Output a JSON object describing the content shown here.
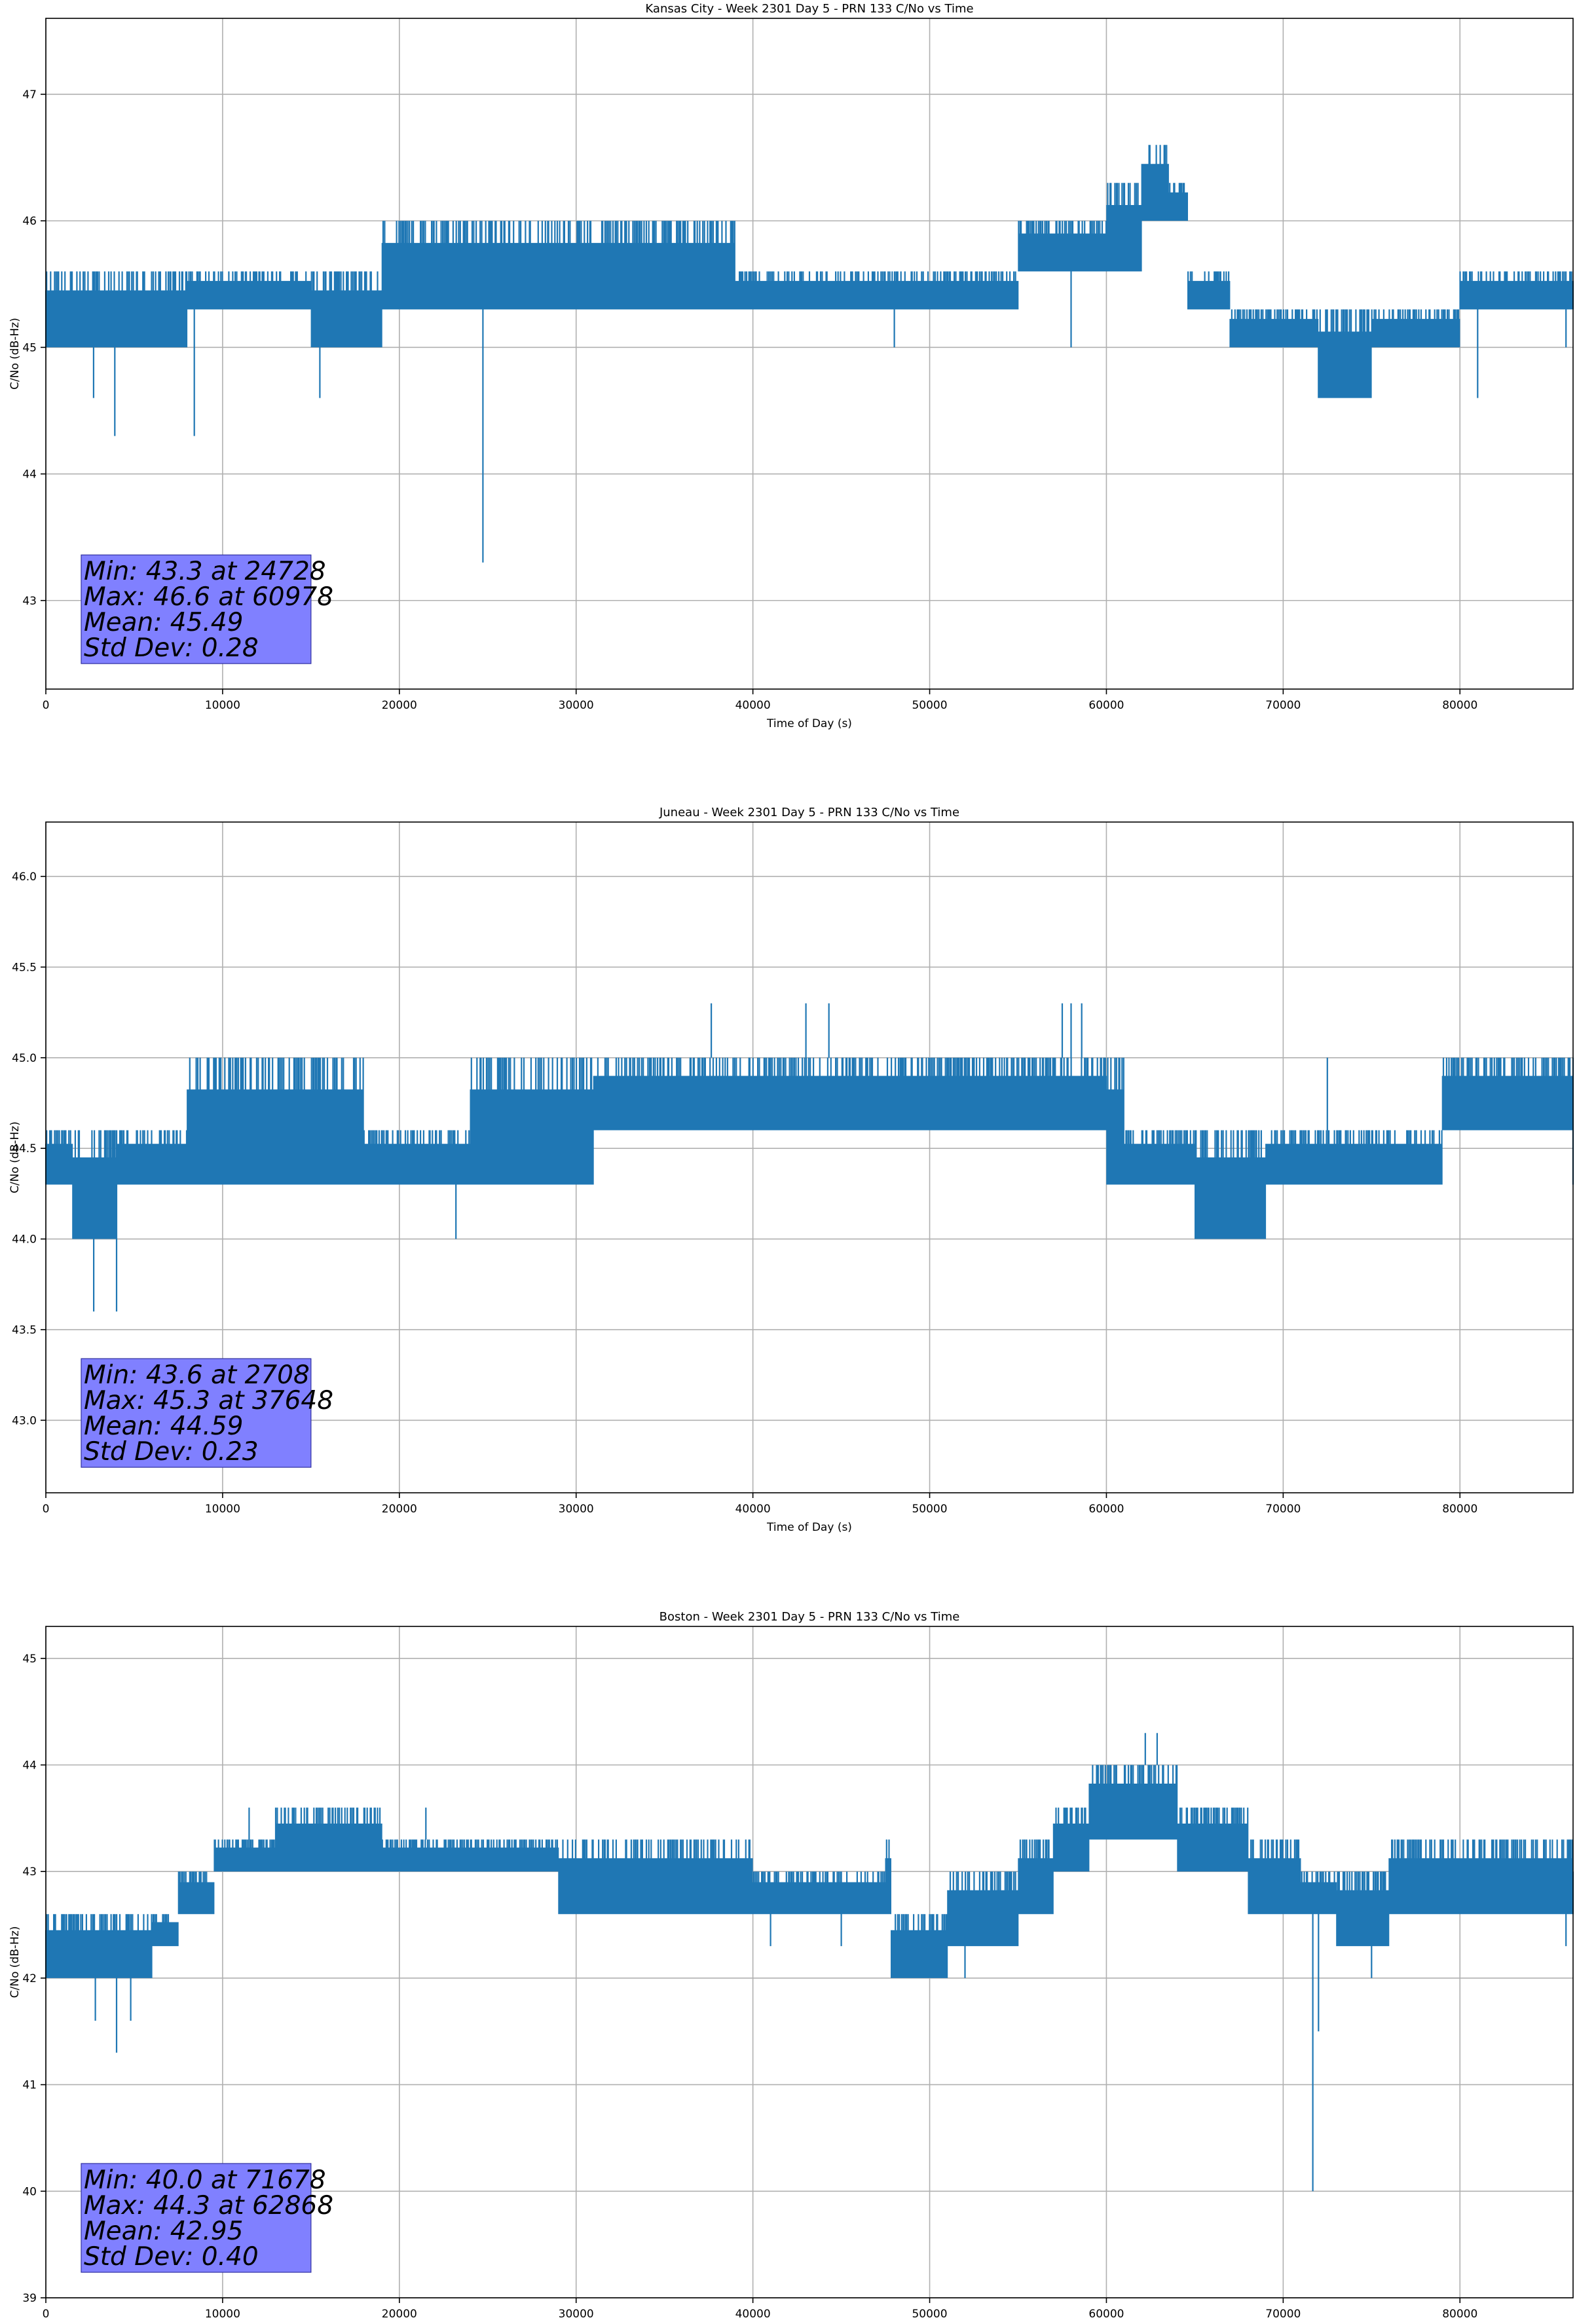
{
  "chart_data": [
    {
      "type": "line",
      "title": "Kansas City - Week 2301 Day 5 - PRN 133 C/No vs Time",
      "xlabel": "Time of Day (s)",
      "ylabel": "C/No (dB-Hz)",
      "xlim": [
        0,
        86400
      ],
      "ylim": [
        42.3,
        47.6
      ],
      "xticks": [
        0,
        10000,
        20000,
        30000,
        40000,
        50000,
        60000,
        70000,
        80000
      ],
      "yticks": [
        43,
        44,
        45,
        46,
        47
      ],
      "grid": true,
      "color": "#1f77b4",
      "annotation": [
        "Min: 43.3 at 24728",
        "Max: 46.6 at 60978",
        "Mean: 45.49",
        "Std Dev: 0.28"
      ],
      "band": [
        [
          0,
          45.0,
          45.6
        ],
        [
          8000,
          45.3,
          45.6
        ],
        [
          15000,
          45.0,
          45.6
        ],
        [
          19000,
          45.3,
          46.0
        ],
        [
          28000,
          45.3,
          46.0
        ],
        [
          39000,
          45.3,
          45.6
        ],
        [
          49000,
          45.3,
          45.6
        ],
        [
          55000,
          45.6,
          46.0
        ],
        [
          60000,
          45.6,
          46.3
        ],
        [
          62000,
          46.0,
          46.6
        ],
        [
          63500,
          46.0,
          46.3
        ],
        [
          64600,
          45.3,
          45.6
        ],
        [
          67000,
          45.0,
          45.3
        ],
        [
          69000,
          45.0,
          45.3
        ],
        [
          72000,
          44.6,
          45.3
        ],
        [
          75000,
          45.0,
          45.3
        ],
        [
          80000,
          45.3,
          45.6
        ],
        [
          86400,
          45.3,
          45.6
        ]
      ],
      "outliers": [
        [
          2700,
          44.6
        ],
        [
          3900,
          44.3
        ],
        [
          8400,
          44.3
        ],
        [
          15500,
          44.6
        ],
        [
          24728,
          43.3
        ],
        [
          48000,
          45.0
        ],
        [
          58000,
          45.0
        ],
        [
          73000,
          44.6
        ],
        [
          81000,
          44.6
        ],
        [
          86000,
          45.0
        ]
      ]
    },
    {
      "type": "line",
      "title": "Juneau - Week 2301 Day 5 - PRN 133 C/No vs Time",
      "xlabel": "Time of Day (s)",
      "ylabel": "C/No (dB-Hz)",
      "xlim": [
        0,
        86400
      ],
      "ylim": [
        42.6,
        46.3
      ],
      "xticks": [
        0,
        10000,
        20000,
        30000,
        40000,
        50000,
        60000,
        70000,
        80000
      ],
      "yticks": [
        43.0,
        43.5,
        44.0,
        44.5,
        45.0,
        45.5,
        46.0
      ],
      "grid": true,
      "color": "#1f77b4",
      "annotation": [
        "Min: 43.6 at 2708",
        "Max: 45.3 at 37648",
        "Mean: 44.59",
        "Std Dev: 0.23"
      ],
      "band": [
        [
          0,
          44.3,
          44.6
        ],
        [
          1500,
          44.0,
          44.6
        ],
        [
          4000,
          44.3,
          44.6
        ],
        [
          8000,
          44.3,
          45.0
        ],
        [
          18000,
          44.3,
          44.6
        ],
        [
          24000,
          44.3,
          45.0
        ],
        [
          31000,
          44.6,
          45.0
        ],
        [
          50000,
          44.6,
          45.0
        ],
        [
          60000,
          44.3,
          45.0
        ],
        [
          61000,
          44.3,
          44.6
        ],
        [
          65000,
          44.0,
          44.6
        ],
        [
          69000,
          44.3,
          44.6
        ],
        [
          79000,
          44.6,
          45.0
        ],
        [
          86400,
          44.3,
          45.0
        ]
      ],
      "outliers": [
        [
          2708,
          43.6
        ],
        [
          4000,
          43.6
        ],
        [
          23200,
          44.0
        ],
        [
          37648,
          45.3
        ],
        [
          43000,
          45.3
        ],
        [
          44300,
          45.3
        ],
        [
          57500,
          45.3
        ],
        [
          58000,
          45.3
        ],
        [
          58600,
          45.3
        ],
        [
          72500,
          45.0
        ]
      ]
    },
    {
      "type": "line",
      "title": "Boston - Week 2301 Day 5 - PRN 133 C/No vs Time",
      "xlabel": "Time of Day (s)",
      "ylabel": "C/No (dB-Hz)",
      "xlim": [
        0,
        86400
      ],
      "ylim": [
        39.0,
        45.3
      ],
      "xticks": [
        0,
        10000,
        20000,
        30000,
        40000,
        50000,
        60000,
        70000,
        80000
      ],
      "yticks": [
        39,
        40,
        41,
        42,
        43,
        44,
        45
      ],
      "grid": true,
      "color": "#1f77b4",
      "annotation": [
        "Min: 40.0 at 71678",
        "Max: 44.3 at 62868",
        "Mean: 42.95",
        "Std Dev: 0.40"
      ],
      "band": [
        [
          0,
          42.0,
          42.6
        ],
        [
          6000,
          42.3,
          42.6
        ],
        [
          7500,
          42.6,
          43.0
        ],
        [
          9500,
          43.0,
          43.3
        ],
        [
          13000,
          43.0,
          43.6
        ],
        [
          19000,
          43.0,
          43.3
        ],
        [
          29000,
          42.6,
          43.3
        ],
        [
          40000,
          42.6,
          43.0
        ],
        [
          47500,
          42.6,
          43.3
        ],
        [
          47800,
          42.0,
          42.6
        ],
        [
          51000,
          42.3,
          43.0
        ],
        [
          55000,
          42.6,
          43.3
        ],
        [
          57000,
          43.0,
          43.6
        ],
        [
          59000,
          43.3,
          44.0
        ],
        [
          63000,
          43.3,
          44.0
        ],
        [
          64000,
          43.0,
          43.6
        ],
        [
          68000,
          42.6,
          43.3
        ],
        [
          71000,
          42.6,
          43.0
        ],
        [
          73000,
          42.3,
          43.0
        ],
        [
          76000,
          42.6,
          43.3
        ],
        [
          86400,
          42.6,
          43.0
        ]
      ],
      "outliers": [
        [
          2800,
          41.6
        ],
        [
          4000,
          41.3
        ],
        [
          4800,
          41.6
        ],
        [
          11500,
          43.6
        ],
        [
          21500,
          43.6
        ],
        [
          41000,
          42.3
        ],
        [
          45000,
          42.3
        ],
        [
          52000,
          42.0
        ],
        [
          62868,
          44.3
        ],
        [
          62200,
          44.3
        ],
        [
          71678,
          40.0
        ],
        [
          72000,
          41.5
        ],
        [
          75000,
          42.0
        ],
        [
          86000,
          42.3
        ]
      ]
    }
  ]
}
